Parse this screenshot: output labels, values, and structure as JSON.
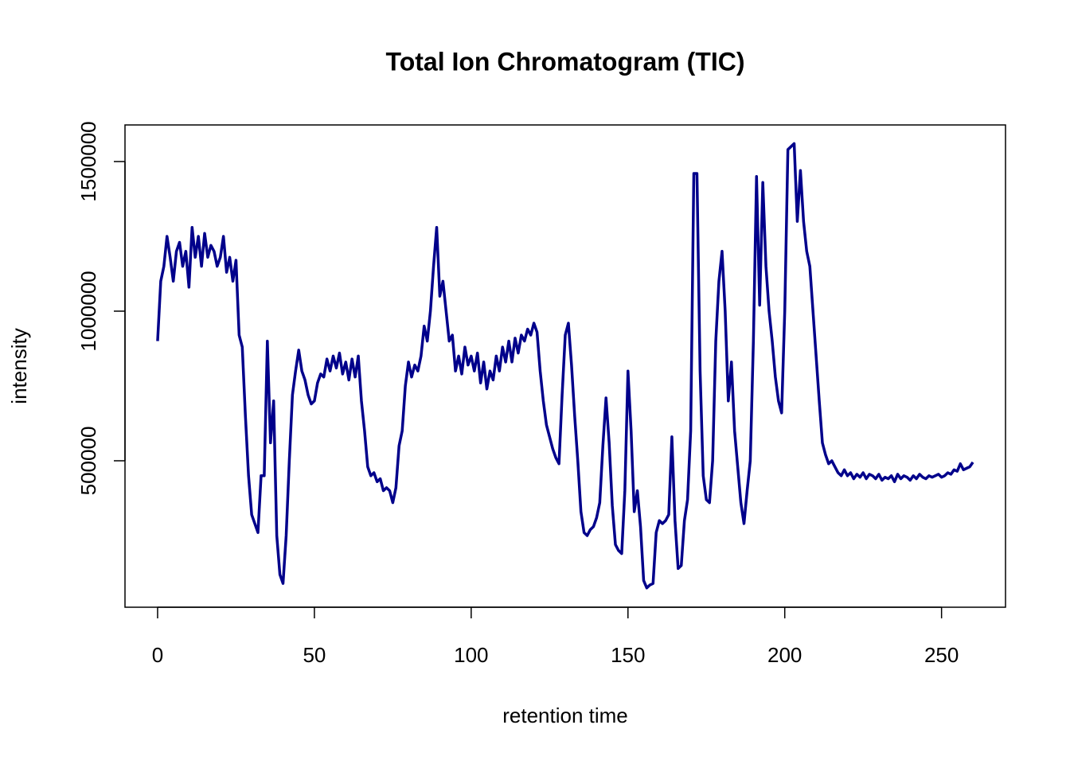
{
  "chart_data": {
    "type": "line",
    "title": "Total Ion Chromatogram (TIC)",
    "x_label": "retention time",
    "y_label": "intensity",
    "color": "#00008b",
    "xlim": [
      -10.4,
      270.4
    ],
    "xticks": [
      0,
      50,
      100,
      150,
      200,
      250
    ],
    "ylim": [
      10600,
      1622300
    ],
    "yticks": [
      500000,
      1000000,
      1500000
    ],
    "x": [
      0,
      1,
      2,
      3,
      4,
      5,
      6,
      7,
      8,
      9,
      10,
      11,
      12,
      13,
      14,
      15,
      16,
      17,
      18,
      19,
      20,
      21,
      22,
      23,
      24,
      25,
      26,
      27,
      28,
      29,
      30,
      31,
      32,
      33,
      34,
      35,
      36,
      37,
      38,
      39,
      40,
      41,
      42,
      43,
      44,
      45,
      46,
      47,
      48,
      49,
      50,
      51,
      52,
      53,
      54,
      55,
      56,
      57,
      58,
      59,
      60,
      61,
      62,
      63,
      64,
      65,
      66,
      67,
      68,
      69,
      70,
      71,
      72,
      73,
      74,
      75,
      76,
      77,
      78,
      79,
      80,
      81,
      82,
      83,
      84,
      85,
      86,
      87,
      88,
      89,
      90,
      91,
      92,
      93,
      94,
      95,
      96,
      97,
      98,
      99,
      100,
      101,
      102,
      103,
      104,
      105,
      106,
      107,
      108,
      109,
      110,
      111,
      112,
      113,
      114,
      115,
      116,
      117,
      118,
      119,
      120,
      121,
      122,
      123,
      124,
      125,
      126,
      127,
      128,
      129,
      130,
      131,
      132,
      133,
      134,
      135,
      136,
      137,
      138,
      139,
      140,
      141,
      142,
      143,
      144,
      145,
      146,
      147,
      148,
      149,
      150,
      151,
      152,
      153,
      154,
      155,
      156,
      157,
      158,
      159,
      160,
      161,
      162,
      163,
      164,
      165,
      166,
      167,
      168,
      169,
      170,
      171,
      172,
      173,
      174,
      175,
      176,
      177,
      178,
      179,
      180,
      181,
      182,
      183,
      184,
      185,
      186,
      187,
      188,
      189,
      190,
      191,
      192,
      193,
      194,
      195,
      196,
      197,
      198,
      199,
      200,
      201,
      202,
      203,
      204,
      205,
      206,
      207,
      208,
      209,
      210,
      211,
      212,
      213,
      214,
      215,
      216,
      217,
      218,
      219,
      220,
      221,
      222,
      223,
      224,
      225,
      226,
      227,
      228,
      229,
      230,
      231,
      232,
      233,
      234,
      235,
      236,
      237,
      238,
      239,
      240,
      241,
      242,
      243,
      244,
      245,
      246,
      247,
      248,
      249,
      250,
      251,
      252,
      253,
      254,
      255,
      256,
      257,
      258,
      259,
      260
    ],
    "values": [
      900000,
      1100000,
      1150000,
      1250000,
      1180000,
      1100000,
      1200000,
      1230000,
      1150000,
      1200000,
      1080000,
      1280000,
      1180000,
      1250000,
      1150000,
      1260000,
      1180000,
      1220000,
      1200000,
      1150000,
      1180000,
      1250000,
      1130000,
      1180000,
      1100000,
      1170000,
      920000,
      880000,
      650000,
      450000,
      320000,
      290000,
      260000,
      450000,
      450000,
      900000,
      560000,
      700000,
      250000,
      120000,
      90000,
      250000,
      500000,
      720000,
      800000,
      870000,
      800000,
      770000,
      720000,
      690000,
      700000,
      760000,
      790000,
      780000,
      840000,
      800000,
      850000,
      810000,
      860000,
      790000,
      830000,
      770000,
      840000,
      780000,
      850000,
      700000,
      600000,
      480000,
      450000,
      460000,
      430000,
      440000,
      400000,
      410000,
      400000,
      360000,
      410000,
      550000,
      600000,
      750000,
      830000,
      780000,
      820000,
      800000,
      850000,
      950000,
      900000,
      1000000,
      1150000,
      1280000,
      1050000,
      1100000,
      1000000,
      900000,
      920000,
      800000,
      850000,
      790000,
      880000,
      820000,
      850000,
      800000,
      860000,
      760000,
      830000,
      740000,
      800000,
      770000,
      850000,
      800000,
      880000,
      830000,
      900000,
      830000,
      910000,
      860000,
      920000,
      900000,
      940000,
      920000,
      960000,
      930000,
      800000,
      700000,
      620000,
      580000,
      540000,
      510000,
      490000,
      720000,
      920000,
      960000,
      820000,
      650000,
      500000,
      330000,
      260000,
      250000,
      270000,
      280000,
      310000,
      360000,
      550000,
      710000,
      560000,
      350000,
      220000,
      200000,
      190000,
      400000,
      800000,
      600000,
      330000,
      400000,
      280000,
      100000,
      75000,
      85000,
      90000,
      260000,
      300000,
      290000,
      300000,
      320000,
      580000,
      300000,
      140000,
      150000,
      300000,
      370000,
      600000,
      1460000,
      1460000,
      800000,
      450000,
      370000,
      360000,
      500000,
      900000,
      1100000,
      1200000,
      1000000,
      700000,
      830000,
      600000,
      480000,
      360000,
      290000,
      400000,
      500000,
      900000,
      1450000,
      1020000,
      1430000,
      1150000,
      1000000,
      900000,
      780000,
      700000,
      660000,
      1000000,
      1540000,
      1550000,
      1560000,
      1300000,
      1470000,
      1300000,
      1200000,
      1150000,
      1000000,
      850000,
      700000,
      560000,
      520000,
      490000,
      500000,
      480000,
      460000,
      450000,
      470000,
      450000,
      460000,
      440000,
      455000,
      445000,
      460000,
      440000,
      455000,
      450000,
      440000,
      455000,
      435000,
      445000,
      440000,
      450000,
      430000,
      455000,
      440000,
      450000,
      445000,
      435000,
      450000,
      440000,
      455000,
      445000,
      440000,
      450000,
      445000,
      450000,
      455000,
      445000,
      450000,
      460000,
      455000,
      470000,
      465000,
      490000,
      470000,
      475000,
      480000,
      495000
    ]
  }
}
